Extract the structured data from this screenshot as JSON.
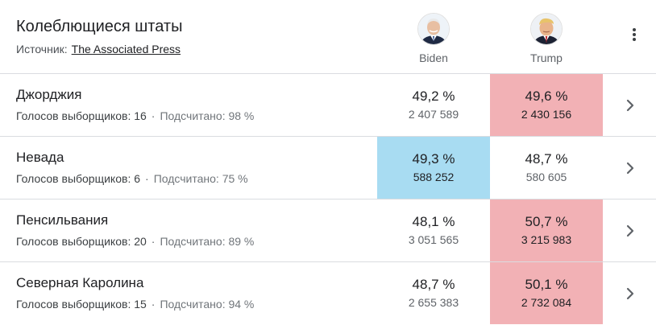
{
  "header": {
    "title": "Колеблющиеся штаты",
    "source_label": "Источник:",
    "source_link": "The Associated Press"
  },
  "candidates": [
    {
      "name": "Biden",
      "icon": "biden-avatar",
      "color": "#a8dcf2"
    },
    {
      "name": "Trump",
      "icon": "trump-avatar",
      "color": "#f2b1b5"
    }
  ],
  "rows": [
    {
      "state": "Джорджия",
      "electors_label": "Голосов выборщиков: 16",
      "counted_label": "Подсчитано: 98 %",
      "biden": {
        "pct": "49,2 %",
        "votes": "2 407 589"
      },
      "trump": {
        "pct": "49,6 %",
        "votes": "2 430 156"
      },
      "leader": "trump"
    },
    {
      "state": "Невада",
      "electors_label": "Голосов выборщиков: 6",
      "counted_label": "Подсчитано: 75 %",
      "biden": {
        "pct": "49,3 %",
        "votes": "588 252"
      },
      "trump": {
        "pct": "48,7 %",
        "votes": "580 605"
      },
      "leader": "biden"
    },
    {
      "state": "Пенсильвания",
      "electors_label": "Голосов выборщиков: 20",
      "counted_label": "Подсчитано: 89 %",
      "biden": {
        "pct": "48,1 %",
        "votes": "3 051 565"
      },
      "trump": {
        "pct": "50,7 %",
        "votes": "3 215 983"
      },
      "leader": "trump"
    },
    {
      "state": "Северная Каролина",
      "electors_label": "Голосов выборщиков: 15",
      "counted_label": "Подсчитано: 94 %",
      "biden": {
        "pct": "48,7 %",
        "votes": "2 655 383"
      },
      "trump": {
        "pct": "50,1 %",
        "votes": "2 732 084"
      },
      "leader": "trump"
    }
  ],
  "icons": {
    "menu": "more-vert-icon",
    "row_action": "chevron-right-icon",
    "separator": "·"
  }
}
